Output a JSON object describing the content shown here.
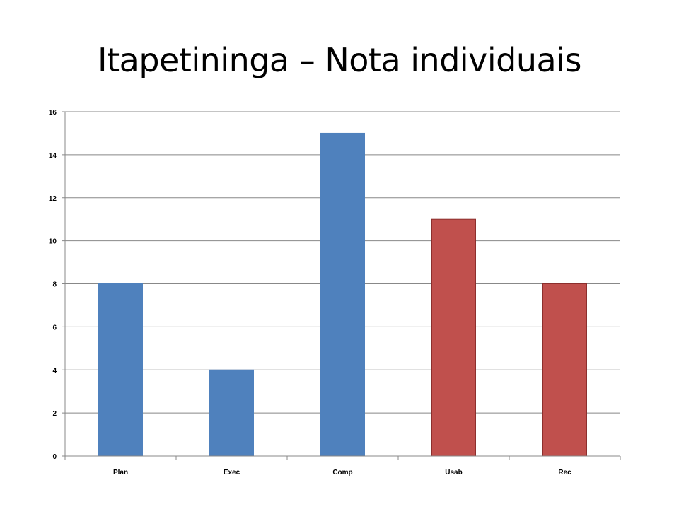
{
  "chart_data": {
    "type": "bar",
    "title": "Itapetininga – Nota individuais",
    "categories": [
      "Plan",
      "Exec",
      "Comp",
      "Usab",
      "Rec"
    ],
    "values": [
      8,
      4,
      15,
      11,
      8
    ],
    "bar_colors": [
      "#4f81bd",
      "#4f81bd",
      "#4f81bd",
      "#c0504d",
      "#c0504d"
    ],
    "bar_border_colors": [
      "#4f81bd",
      "#4f81bd",
      "#4f81bd",
      "#8c2f2d",
      "#8c2f2d"
    ],
    "ylim": [
      0,
      16
    ],
    "yticks": [
      "0",
      "2",
      "4",
      "6",
      "8",
      "10",
      "12",
      "14",
      "16"
    ],
    "grid": true,
    "legend": "none",
    "xlabel": "",
    "ylabel": ""
  }
}
